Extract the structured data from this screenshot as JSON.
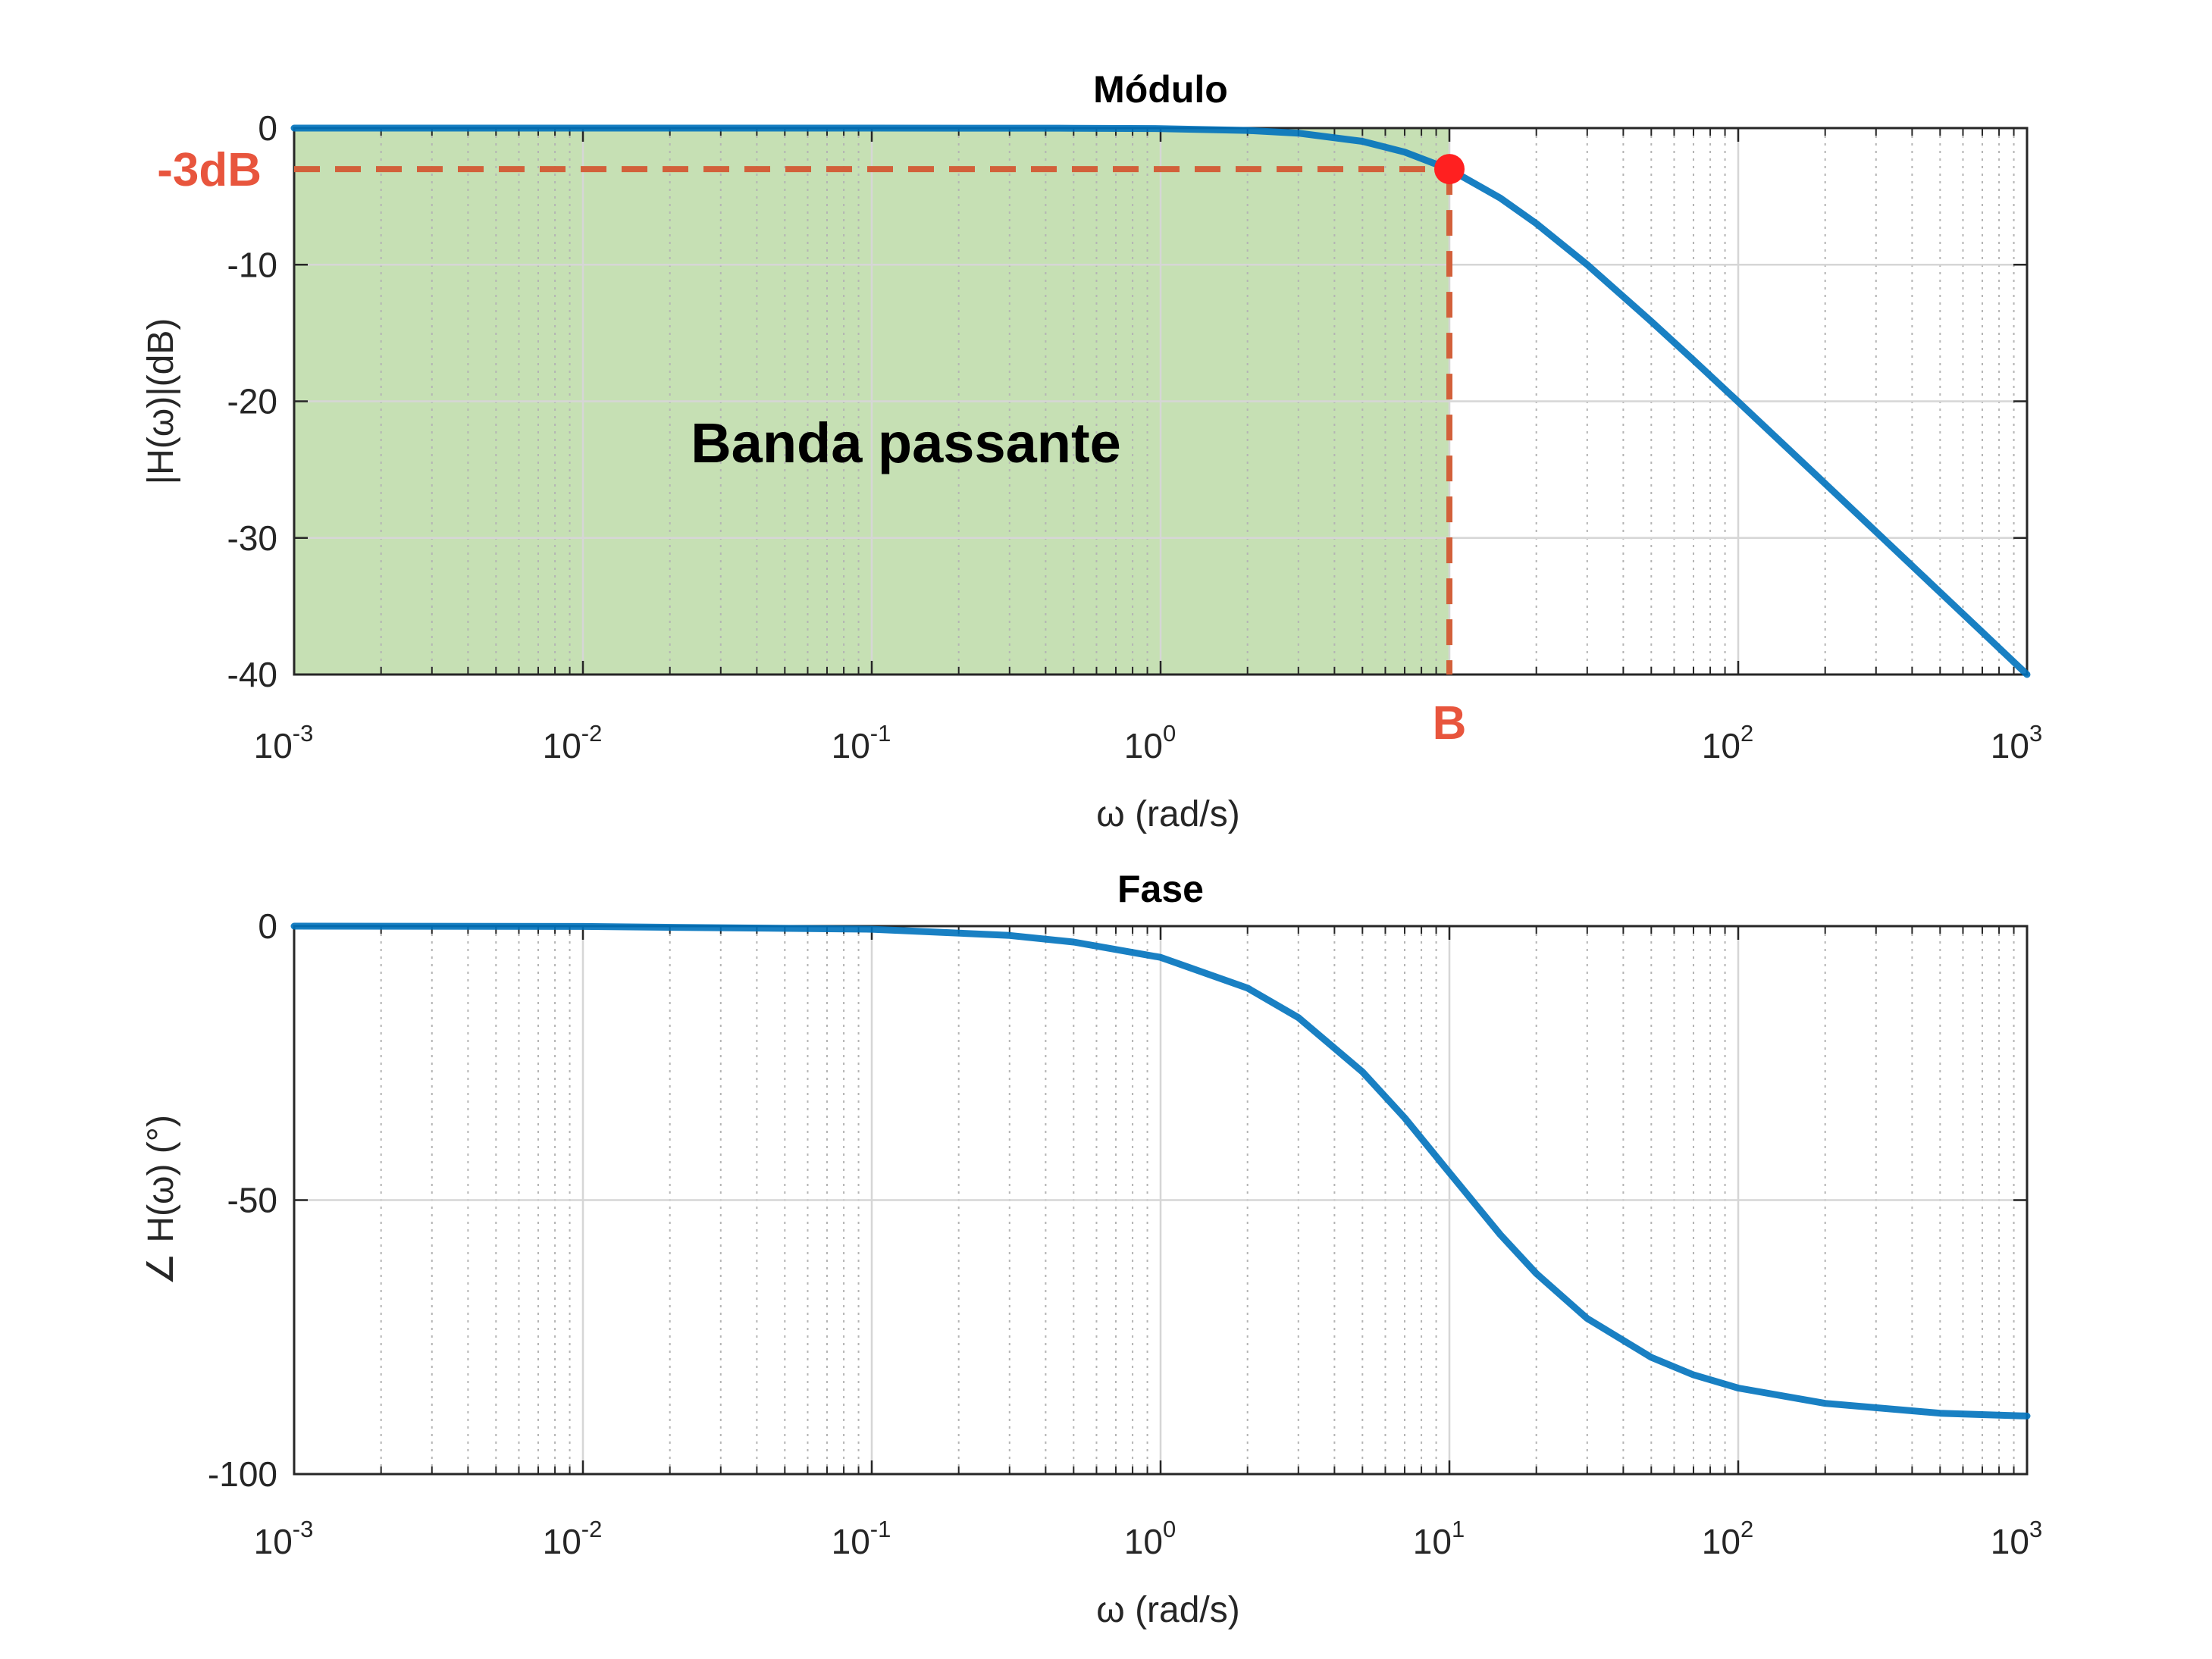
{
  "chart_data": [
    {
      "type": "line",
      "title": "Módulo",
      "xlabel": "ω (rad/s)",
      "ylabel": "|H(ω)|(dB)",
      "xscale": "log",
      "xlim": [
        0.001,
        1000
      ],
      "ylim": [
        -40,
        0
      ],
      "xticks": [
        {
          "label": "10",
          "exp": "-3",
          "value": 0.001
        },
        {
          "label": "10",
          "exp": "-2",
          "value": 0.01
        },
        {
          "label": "10",
          "exp": "-1",
          "value": 0.1
        },
        {
          "label": "10",
          "exp": "0",
          "value": 1
        },
        {
          "label": "10",
          "exp": "2",
          "value": 100
        },
        {
          "label": "10",
          "exp": "3",
          "value": 1000
        }
      ],
      "yticks": [
        {
          "label": "0",
          "value": 0
        },
        {
          "label": "-10",
          "value": -10
        },
        {
          "label": "-20",
          "value": -20
        },
        {
          "label": "-30",
          "value": -30
        },
        {
          "label": "-40",
          "value": -40
        }
      ],
      "grid": true,
      "series": [
        {
          "color": "#0072bd",
          "x": [
            0.001,
            0.01,
            0.1,
            0.5,
            1,
            2,
            3,
            5,
            7,
            10,
            15,
            20,
            30,
            50,
            70,
            100,
            200,
            300,
            500,
            700,
            1000
          ],
          "y": [
            0,
            0,
            0,
            -0.01,
            -0.04,
            -0.17,
            -0.37,
            -0.97,
            -1.76,
            -3.01,
            -5.12,
            -6.99,
            -10.0,
            -14.15,
            -16.99,
            -20.04,
            -26.03,
            -29.55,
            -33.98,
            -36.9,
            -40.0
          ]
        }
      ],
      "annotations": {
        "cutoff_label": "-3dB",
        "cutoff_db": -3,
        "bandwidth_label": "B",
        "bandwidth_x": 10,
        "region_label": "Banda passante",
        "region_x": [
          0.001,
          10
        ],
        "region_color": "#c6e0b4",
        "annotation_color": "#e8553d",
        "marker_color": "#ff2020"
      }
    },
    {
      "type": "line",
      "title": "Fase",
      "xlabel": "ω (rad/s)",
      "ylabel": "∠ H(ω) (°)",
      "xscale": "log",
      "xlim": [
        0.001,
        1000
      ],
      "ylim": [
        -100,
        0
      ],
      "xticks": [
        {
          "label": "10",
          "exp": "-3",
          "value": 0.001
        },
        {
          "label": "10",
          "exp": "-2",
          "value": 0.01
        },
        {
          "label": "10",
          "exp": "-1",
          "value": 0.1
        },
        {
          "label": "10",
          "exp": "0",
          "value": 1
        },
        {
          "label": "10",
          "exp": "1",
          "value": 10
        },
        {
          "label": "10",
          "exp": "2",
          "value": 100
        },
        {
          "label": "10",
          "exp": "3",
          "value": 1000
        }
      ],
      "yticks": [
        {
          "label": "0",
          "value": 0
        },
        {
          "label": "-50",
          "value": -50
        },
        {
          "label": "-100",
          "value": -100
        }
      ],
      "grid": true,
      "series": [
        {
          "color": "#0072bd",
          "x": [
            0.001,
            0.01,
            0.1,
            0.3,
            0.5,
            1,
            2,
            3,
            5,
            7,
            10,
            15,
            20,
            30,
            50,
            70,
            100,
            200,
            500,
            1000
          ],
          "y": [
            0,
            -0.06,
            -0.57,
            -1.7,
            -2.9,
            -5.7,
            -11.3,
            -16.7,
            -26.6,
            -35.0,
            -45.0,
            -56.3,
            -63.4,
            -71.6,
            -78.7,
            -81.9,
            -84.3,
            -87.1,
            -88.9,
            -89.4
          ]
        }
      ]
    }
  ]
}
